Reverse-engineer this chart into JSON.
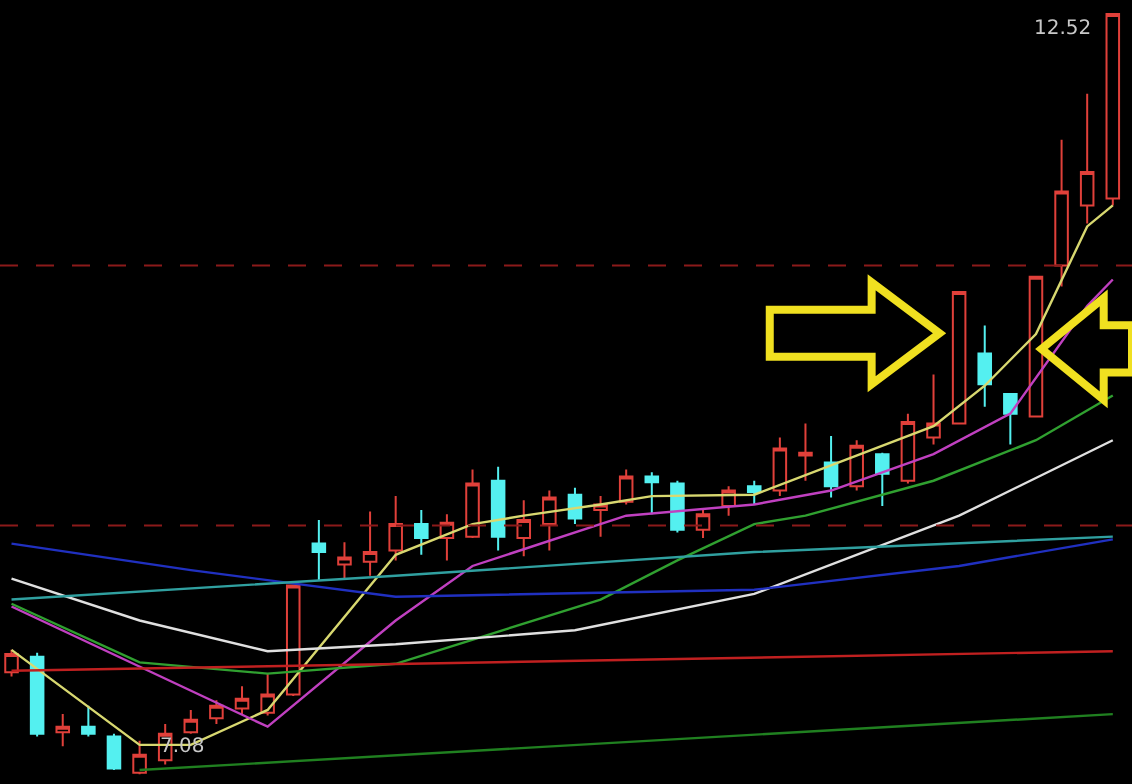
{
  "chart_data": {
    "type": "candlestick",
    "categories": [
      null,
      null,
      null,
      null,
      null,
      null,
      null,
      null,
      null,
      null,
      null,
      null,
      null,
      null,
      null,
      null,
      null,
      null,
      null,
      null,
      null,
      null,
      null,
      null,
      null,
      null,
      null,
      null,
      null,
      null,
      null,
      null,
      null,
      null,
      null,
      null,
      null,
      null,
      null,
      null,
      null,
      null,
      null,
      null
    ],
    "ohlc": [
      [
        7.81,
        7.97,
        7.78,
        7.94
      ],
      [
        7.92,
        7.95,
        7.35,
        7.37
      ],
      [
        7.38,
        7.51,
        7.28,
        7.42
      ],
      [
        7.42,
        7.57,
        7.35,
        7.37
      ],
      [
        7.35,
        7.37,
        7.11,
        7.12
      ],
      [
        7.09,
        7.32,
        7.08,
        7.22
      ],
      [
        7.18,
        7.44,
        7.15,
        7.37
      ],
      [
        7.38,
        7.54,
        7.37,
        7.47
      ],
      [
        7.48,
        7.61,
        7.44,
        7.57
      ],
      [
        7.55,
        7.71,
        7.51,
        7.62
      ],
      [
        7.52,
        7.8,
        7.5,
        7.65
      ],
      [
        7.65,
        8.43,
        7.64,
        8.43
      ],
      [
        8.73,
        8.9,
        8.47,
        8.67
      ],
      [
        8.58,
        8.74,
        8.47,
        8.63
      ],
      [
        8.6,
        8.96,
        8.5,
        8.67
      ],
      [
        8.68,
        9.07,
        8.61,
        8.87
      ],
      [
        8.87,
        8.97,
        8.65,
        8.77
      ],
      [
        8.77,
        8.94,
        8.61,
        8.88
      ],
      [
        8.78,
        9.26,
        8.77,
        9.16
      ],
      [
        9.18,
        9.28,
        8.68,
        8.78
      ],
      [
        8.77,
        9.04,
        8.64,
        8.9
      ],
      [
        8.87,
        9.11,
        8.68,
        9.06
      ],
      [
        9.08,
        9.13,
        8.87,
        8.91
      ],
      [
        8.97,
        9.07,
        8.78,
        9.01
      ],
      [
        9.03,
        9.26,
        9.01,
        9.21
      ],
      [
        9.21,
        9.24,
        8.94,
        9.17
      ],
      [
        9.16,
        9.18,
        8.81,
        8.83
      ],
      [
        8.83,
        8.97,
        8.77,
        8.94
      ],
      [
        9.0,
        9.14,
        8.93,
        9.11
      ],
      [
        9.14,
        9.18,
        9.01,
        9.1
      ],
      [
        9.11,
        9.49,
        9.07,
        9.41
      ],
      [
        9.36,
        9.59,
        9.18,
        9.38
      ],
      [
        9.31,
        9.5,
        9.06,
        9.14
      ],
      [
        9.14,
        9.47,
        9.11,
        9.43
      ],
      [
        9.37,
        9.38,
        9.0,
        9.23
      ],
      [
        9.18,
        9.66,
        9.16,
        9.6
      ],
      [
        9.49,
        9.94,
        9.44,
        9.59
      ],
      [
        9.59,
        10.53,
        9.59,
        10.53
      ],
      [
        10.09,
        10.29,
        9.71,
        9.87
      ],
      [
        9.8,
        9.8,
        9.44,
        9.66
      ],
      [
        9.64,
        10.64,
        9.64,
        10.64
      ],
      [
        10.72,
        11.62,
        10.57,
        11.25
      ],
      [
        11.15,
        11.95,
        11.02,
        11.39
      ],
      [
        11.2,
        12.52,
        11.15,
        12.52
      ]
    ],
    "colors": [
      "#e0403a",
      "#54f0f0",
      "#e0403a",
      "#54f0f0",
      "#54f0f0",
      "#e0403a",
      "#e0403a",
      "#e0403a",
      "#e0403a",
      "#e0403a",
      "#e0403a",
      "#e0403a",
      "#54f0f0",
      "#e0403a",
      "#e0403a",
      "#e0403a",
      "#54f0f0",
      "#e0403a",
      "#e0403a",
      "#54f0f0",
      "#e0403a",
      "#e0403a",
      "#54f0f0",
      "#e0403a",
      "#e0403a",
      "#54f0f0",
      "#54f0f0",
      "#e0403a",
      "#e0403a",
      "#54f0f0",
      "#e0403a",
      "#e0403a",
      "#54f0f0",
      "#e0403a",
      "#54f0f0",
      "#e0403a",
      "#e0403a",
      "#e0403a",
      "#54f0f0",
      "#54f0f0",
      "#e0403a",
      "#e0403a",
      "#e0403a",
      "#e0403a"
    ],
    "series": [
      {
        "type": "line",
        "color": "#d8d870",
        "values": [
          7.97,
          null,
          null,
          null,
          null,
          7.29,
          null,
          7.29,
          null,
          null,
          7.54,
          null,
          null,
          null,
          null,
          8.65,
          null,
          null,
          8.87,
          null,
          8.93,
          null,
          null,
          9.01,
          null,
          9.07,
          null,
          null,
          null,
          9.08,
          null,
          null,
          null,
          null,
          null,
          null,
          9.57,
          null,
          9.86,
          null,
          10.23,
          null,
          11.0,
          11.15
        ]
      },
      {
        "type": "line",
        "color": "#c040c0",
        "values": [
          8.28,
          null,
          null,
          null,
          null,
          null,
          null,
          null,
          null,
          null,
          7.42,
          null,
          null,
          null,
          null,
          8.18,
          null,
          null,
          8.57,
          null,
          null,
          null,
          null,
          null,
          8.93,
          null,
          null,
          null,
          null,
          9.01,
          null,
          null,
          9.11,
          null,
          null,
          null,
          9.37,
          null,
          null,
          9.66,
          null,
          null,
          10.43,
          10.62
        ]
      },
      {
        "type": "line",
        "color": "#30a030",
        "values": [
          8.3,
          null,
          null,
          null,
          null,
          7.88,
          null,
          null,
          null,
          null,
          7.8,
          null,
          null,
          null,
          null,
          7.87,
          null,
          null,
          null,
          null,
          null,
          null,
          null,
          8.33,
          null,
          null,
          8.61,
          null,
          null,
          8.87,
          null,
          8.93,
          null,
          null,
          null,
          null,
          9.18,
          null,
          null,
          null,
          9.47,
          null,
          null,
          9.79
        ]
      },
      {
        "type": "line",
        "color": "#e0e0e0",
        "values": [
          8.48,
          null,
          null,
          null,
          null,
          8.18,
          null,
          null,
          null,
          null,
          7.96,
          null,
          null,
          null,
          null,
          8.01,
          null,
          null,
          null,
          null,
          null,
          null,
          8.11,
          null,
          null,
          null,
          null,
          null,
          null,
          8.37,
          null,
          null,
          null,
          null,
          null,
          null,
          null,
          8.93,
          null,
          null,
          null,
          null,
          null,
          9.47
        ]
      },
      {
        "type": "line",
        "color": "#2030c0",
        "values": [
          8.73,
          null,
          null,
          null,
          null,
          null,
          null,
          8.54,
          null,
          null,
          null,
          null,
          null,
          null,
          null,
          8.35,
          null,
          null,
          null,
          null,
          null,
          null,
          null,
          null,
          null,
          null,
          null,
          null,
          null,
          8.4,
          null,
          null,
          null,
          null,
          null,
          null,
          null,
          8.57,
          null,
          null,
          null,
          null,
          null,
          8.76
        ]
      },
      {
        "type": "line",
        "color": "#30a0a0",
        "values": [
          8.33,
          null,
          null,
          null,
          null,
          null,
          null,
          null,
          null,
          null,
          null,
          null,
          null,
          null,
          null,
          8.5,
          null,
          null,
          null,
          null,
          null,
          null,
          null,
          null,
          null,
          null,
          null,
          null,
          null,
          8.67,
          null,
          null,
          null,
          null,
          null,
          null,
          null,
          null,
          null,
          null,
          null,
          null,
          null,
          8.78
        ]
      },
      {
        "type": "line",
        "color": "#c02020",
        "values": [
          7.82,
          null,
          null,
          null,
          null,
          null,
          null,
          null,
          null,
          null,
          null,
          null,
          null,
          null,
          null,
          null,
          null,
          null,
          null,
          null,
          null,
          null,
          null,
          null,
          null,
          null,
          null,
          null,
          null,
          null,
          null,
          null,
          null,
          null,
          null,
          null,
          null,
          null,
          null,
          null,
          null,
          null,
          null,
          7.96
        ]
      },
      {
        "type": "line",
        "color": "#208020",
        "values": [
          null,
          null,
          null,
          null,
          null,
          7.11,
          null,
          null,
          null,
          null,
          null,
          null,
          null,
          null,
          null,
          null,
          null,
          null,
          null,
          null,
          null,
          null,
          null,
          null,
          null,
          null,
          null,
          null,
          null,
          null,
          null,
          null,
          null,
          null,
          null,
          null,
          null,
          null,
          null,
          null,
          null,
          null,
          null,
          7.51
        ]
      }
    ],
    "ylim": [
      7.01,
      12.62
    ],
    "ref_lines": [
      {
        "axis": "y",
        "value": 10.72,
        "color": "#8b1a1a",
        "line_style": "dashed"
      },
      {
        "axis": "y",
        "value": 8.86,
        "color": "#8b1a1a",
        "line_style": "dashed"
      }
    ],
    "annotations": [
      "12.52",
      "7.08"
    ]
  }
}
